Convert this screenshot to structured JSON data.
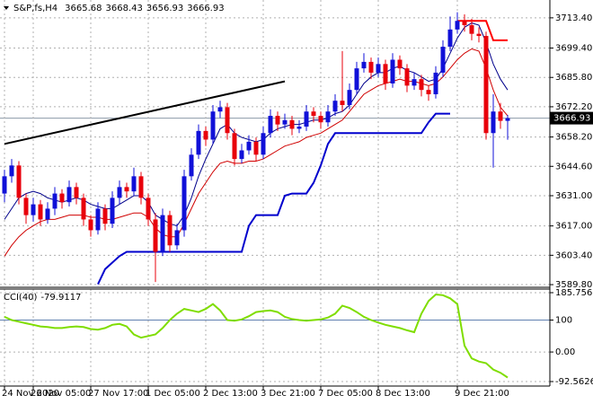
{
  "chart_data": [
    {
      "type": "candlestick",
      "title": "S&P,fs,H4",
      "open": [
        3632,
        3640,
        3645,
        3630,
        3622,
        3627,
        3620,
        3625,
        3632,
        3628,
        3635,
        3630,
        3620,
        3615,
        3625,
        3618,
        3630,
        3635,
        3633,
        3640,
        3630,
        3620,
        3605,
        3622,
        3608,
        3615,
        3640,
        3650,
        3661,
        3657,
        3670,
        3672,
        3660,
        3648,
        3652,
        3656,
        3650,
        3660,
        3668,
        3664,
        3666,
        3662,
        3663,
        3670,
        3668,
        3665,
        3670,
        3675,
        3673,
        3680,
        3690,
        3693,
        3688,
        3692,
        3683,
        3694,
        3690,
        3682,
        3685,
        3680,
        3678,
        3688,
        3700,
        3708,
        3712,
        3710,
        3706,
        3705,
        3660,
        3670,
        3665.68
      ],
      "high": [
        3643,
        3648,
        3647,
        3632,
        3630,
        3629,
        3628,
        3635,
        3634,
        3638,
        3637,
        3632,
        3622,
        3628,
        3627,
        3633,
        3638,
        3637,
        3644,
        3642,
        3632,
        3623,
        3625,
        3624,
        3618,
        3643,
        3653,
        3664,
        3663,
        3673,
        3675,
        3674,
        3662,
        3655,
        3659,
        3658,
        3663,
        3671,
        3670,
        3669,
        3668,
        3666,
        3673,
        3672,
        3670,
        3673,
        3678,
        3698,
        3683,
        3693,
        3697,
        3695,
        3695,
        3694,
        3697,
        3696,
        3692,
        3688,
        3687,
        3682,
        3691,
        3703,
        3714,
        3716,
        3715,
        3713,
        3709,
        3707,
        3678,
        3674,
        3668.43
      ],
      "low": [
        3628,
        3637,
        3627,
        3618,
        3619,
        3617,
        3618,
        3622,
        3625,
        3626,
        3627,
        3617,
        3612,
        3613,
        3615,
        3616,
        3627,
        3630,
        3631,
        3627,
        3617,
        3591,
        3603,
        3605,
        3606,
        3612,
        3638,
        3648,
        3654,
        3655,
        3667,
        3657,
        3645,
        3646,
        3650,
        3647,
        3648,
        3658,
        3661,
        3662,
        3659,
        3660,
        3661,
        3665,
        3662,
        3663,
        3668,
        3670,
        3671,
        3678,
        3688,
        3685,
        3686,
        3680,
        3681,
        3687,
        3679,
        3680,
        3677,
        3675,
        3676,
        3686,
        3698,
        3706,
        3707,
        3703,
        3702,
        3657,
        3644,
        3662,
        3656.93
      ],
      "close": [
        3640,
        3645,
        3630,
        3622,
        3627,
        3620,
        3625,
        3632,
        3628,
        3635,
        3630,
        3620,
        3615,
        3625,
        3618,
        3630,
        3635,
        3633,
        3640,
        3630,
        3620,
        3605,
        3622,
        3608,
        3615,
        3640,
        3650,
        3661,
        3657,
        3670,
        3672,
        3660,
        3648,
        3652,
        3656,
        3650,
        3660,
        3668,
        3664,
        3666,
        3662,
        3663,
        3670,
        3668,
        3665,
        3670,
        3675,
        3673,
        3680,
        3690,
        3693,
        3688,
        3692,
        3683,
        3694,
        3690,
        3682,
        3685,
        3680,
        3678,
        3688,
        3700,
        3708,
        3712,
        3710,
        3706,
        3705,
        3660,
        3670,
        3665.68,
        3666.93
      ],
      "up_color": "#1010d8",
      "down_color": "#e8000b",
      "series": [
        {
          "color": "#00008b",
          "width": 1,
          "values": [
            3620,
            3625,
            3630,
            3632,
            3633,
            3632,
            3630,
            3629,
            3628,
            3629,
            3630,
            3629,
            3627,
            3626,
            3625,
            3625,
            3627,
            3629,
            3631,
            3631,
            3628,
            3622,
            3620,
            3618,
            3617,
            3622,
            3630,
            3640,
            3648,
            3655,
            3662,
            3664,
            3660,
            3658,
            3657,
            3656,
            3657,
            3660,
            3662,
            3663,
            3664,
            3664,
            3665,
            3666,
            3666,
            3667,
            3669,
            3670,
            3673,
            3678,
            3683,
            3686,
            3688,
            3688,
            3690,
            3691,
            3689,
            3688,
            3686,
            3684,
            3685,
            3690,
            3697,
            3704,
            3709,
            3711,
            3710,
            3702,
            3692,
            3685,
            3680
          ]
        },
        {
          "color": "#d00000",
          "width": 1,
          "values": [
            3603,
            3608,
            3612,
            3615,
            3617,
            3619,
            3620,
            3620,
            3621,
            3622,
            3622,
            3622,
            3621,
            3621,
            3620,
            3620,
            3621,
            3622,
            3623,
            3623,
            3621,
            3616,
            3613,
            3612,
            3612,
            3618,
            3625,
            3632,
            3637,
            3642,
            3646,
            3647,
            3646,
            3646,
            3647,
            3647,
            3648,
            3650,
            3652,
            3654,
            3655,
            3656,
            3658,
            3659,
            3660,
            3662,
            3664,
            3666,
            3670,
            3674,
            3678,
            3680,
            3682,
            3683,
            3684,
            3685,
            3684,
            3684,
            3683,
            3682,
            3683,
            3686,
            3690,
            3694,
            3697,
            3699,
            3698,
            3690,
            3680,
            3672,
            3668
          ]
        },
        {
          "color": "#0000cd",
          "width": 2,
          "values": [
            null,
            null,
            null,
            null,
            null,
            null,
            null,
            null,
            null,
            null,
            null,
            null,
            null,
            3590,
            3597,
            3600,
            3603,
            3605,
            3605,
            3605,
            3605,
            3605,
            3605,
            3605,
            3605,
            3605,
            3605,
            3605,
            3605,
            3605,
            3605,
            3605,
            3605,
            3605,
            3617,
            3622,
            3622,
            3622,
            3622,
            3631,
            3632,
            3632,
            3632,
            3637,
            3645,
            3655,
            3660,
            3660,
            3660,
            3660,
            3660,
            3660,
            3660,
            3660,
            3660,
            3660,
            3660,
            3660,
            3660,
            3665,
            3669,
            3669,
            3669,
            null,
            null,
            null,
            null,
            null,
            null,
            null,
            null
          ]
        },
        {
          "color": "#ff0000",
          "width": 2,
          "values": [
            null,
            null,
            null,
            null,
            null,
            null,
            null,
            null,
            null,
            null,
            null,
            null,
            null,
            null,
            null,
            null,
            null,
            null,
            null,
            null,
            null,
            null,
            null,
            null,
            null,
            null,
            null,
            null,
            null,
            null,
            null,
            null,
            null,
            null,
            null,
            null,
            null,
            null,
            null,
            null,
            null,
            null,
            null,
            null,
            null,
            null,
            null,
            null,
            null,
            null,
            null,
            null,
            null,
            null,
            null,
            null,
            null,
            null,
            null,
            null,
            null,
            null,
            null,
            3712,
            3712,
            3712,
            3712,
            3712,
            3703,
            3703,
            3703
          ]
        }
      ],
      "trendline": {
        "x": [
          0,
          39
        ],
        "values": [
          3655,
          3684
        ],
        "color": "#000000"
      },
      "ylim": [
        3589.4,
        3720.0
      ],
      "yticks": [
        {
          "value": 3713.4,
          "label": "3713.40"
        },
        {
          "value": 3699.4,
          "label": "3699.40"
        },
        {
          "value": 3685.8,
          "label": "3685.80"
        },
        {
          "value": 3672.2,
          "label": "3672.20"
        },
        {
          "value": 3658.2,
          "label": "3658.20"
        },
        {
          "value": 3644.6,
          "label": "3644.60"
        },
        {
          "value": 3631.0,
          "label": "3631.00"
        },
        {
          "value": 3617.0,
          "label": "3617.00"
        },
        {
          "value": 3603.4,
          "label": "3603.40"
        },
        {
          "value": 3589.8,
          "label": "3589.80"
        }
      ],
      "grid": true
    },
    {
      "type": "line",
      "title": "CCI(40)",
      "color": "#7fdd00",
      "categories": [
        "24 Nov 2020",
        null,
        null,
        null,
        "26 Nov 05:00",
        null,
        null,
        null,
        null,
        null,
        null,
        null,
        "27 Nov 17:00",
        null,
        null,
        null,
        null,
        null,
        null,
        null,
        "1 Dec 05:00",
        null,
        null,
        null,
        null,
        null,
        null,
        null,
        "2 Dec 13:00",
        null,
        null,
        null,
        null,
        null,
        null,
        null,
        "3 Dec 21:00",
        null,
        null,
        null,
        null,
        null,
        null,
        null,
        "7 Dec 05:00",
        null,
        null,
        null,
        null,
        null,
        null,
        null,
        "8 Dec 13:00",
        null,
        null,
        null,
        null,
        null,
        null,
        null,
        null,
        null,
        null,
        "9 Dec 21:00",
        null,
        null,
        null,
        null,
        null,
        null,
        null
      ],
      "values": [
        110,
        100,
        95,
        90,
        85,
        80,
        78,
        75,
        75,
        78,
        80,
        78,
        72,
        70,
        75,
        85,
        88,
        80,
        55,
        45,
        50,
        55,
        75,
        100,
        120,
        135,
        130,
        125,
        135,
        150,
        130,
        100,
        98,
        102,
        112,
        125,
        128,
        130,
        125,
        110,
        103,
        100,
        98,
        100,
        102,
        108,
        120,
        145,
        138,
        125,
        110,
        100,
        92,
        85,
        80,
        75,
        68,
        62,
        120,
        160,
        180,
        178,
        168,
        150,
        20,
        -20,
        -30,
        -35,
        -55,
        -65,
        -79.9117
      ],
      "levels": [
        100
      ],
      "level_color": "#6080b0",
      "ylim": [
        -92.5626,
        185.7566
      ],
      "yticks": [
        185.7566,
        100,
        {
          "value": 0,
          "label": "0.00"
        },
        -92.5626
      ],
      "grid": true
    }
  ]
}
